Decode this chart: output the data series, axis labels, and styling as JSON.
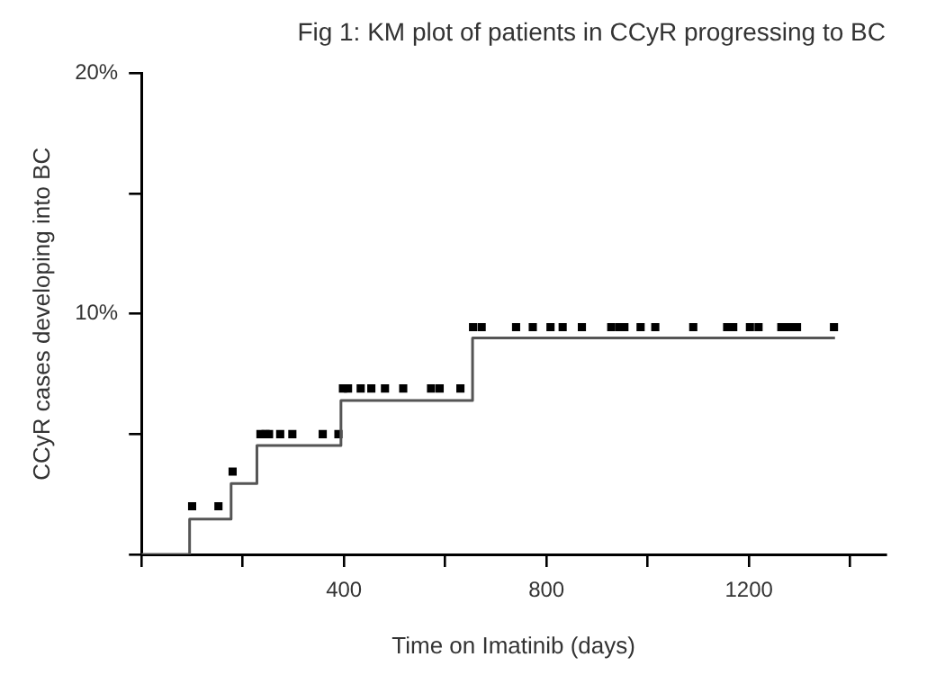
{
  "chart_data": {
    "type": "step",
    "title": "Fig 1: KM plot of patients in CCyR progressing to BC",
    "xlabel": "Time on Imatinib (days)",
    "ylabel": "CCyR cases developing into BC",
    "xlim": [
      0,
      1470
    ],
    "xticks": [
      {
        "value": 0,
        "label": null
      },
      {
        "value": 200,
        "label": null
      },
      400,
      {
        "value": 600,
        "label": null
      },
      800,
      {
        "value": 1000,
        "label": null
      },
      1200,
      {
        "value": 1400,
        "label": null
      }
    ],
    "ylim": [
      0,
      20
    ],
    "yticks": [
      {
        "value": 0,
        "label": null
      },
      {
        "value": 5,
        "label": null
      },
      {
        "value": 10,
        "label": "10%"
      },
      {
        "value": 15,
        "label": null
      },
      {
        "value": 20,
        "label": "20%"
      }
    ],
    "grid": false,
    "legend": false,
    "series": [
      {
        "type": "step",
        "color": "#555555",
        "marker": "none",
        "x": [
          0,
          95,
          177,
          228,
          394,
          654,
          1370
        ],
        "values": [
          0,
          1.47,
          2.95,
          4.53,
          6.4,
          9.0,
          9.0
        ]
      },
      {
        "type": "scatter",
        "color": "#000000",
        "marker": "square",
        "x": [
          100,
          152,
          180,
          235,
          245,
          252,
          274,
          298,
          358,
          389,
          398,
          408,
          433,
          454,
          481,
          517,
          572,
          589,
          630,
          655,
          672,
          740,
          773,
          808,
          832,
          870,
          928,
          944,
          954,
          986,
          1015,
          1090,
          1157,
          1169,
          1202,
          1219,
          1264,
          1276,
          1287,
          1295,
          1368
        ],
        "values": [
          2.0,
          2.0,
          3.44,
          5.0,
          5.0,
          5.0,
          5.0,
          5.0,
          5.0,
          5.0,
          6.9,
          6.9,
          6.9,
          6.9,
          6.9,
          6.9,
          6.9,
          6.9,
          6.9,
          9.45,
          9.45,
          9.45,
          9.45,
          9.45,
          9.45,
          9.45,
          9.45,
          9.45,
          9.45,
          9.45,
          9.45,
          9.45,
          9.45,
          9.45,
          9.45,
          9.45,
          9.45,
          9.45,
          9.45,
          9.45,
          9.45
        ]
      }
    ]
  }
}
